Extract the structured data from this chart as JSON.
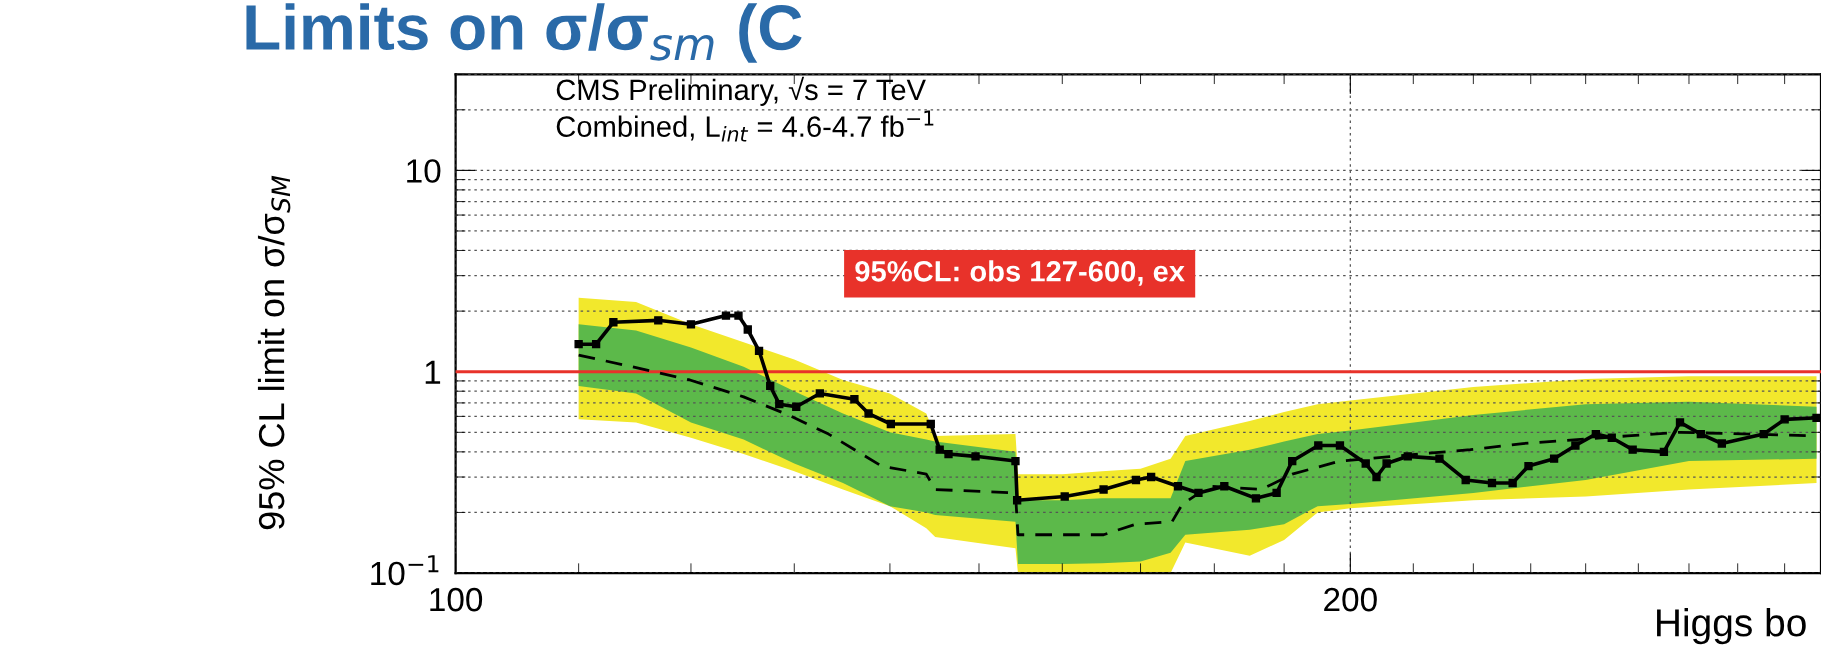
{
  "chart_data": {
    "type": "line",
    "title": "Limits on σ/σ$_{sm}$ (C",
    "xlabel": "Higgs bo",
    "ylabel": "95% CL limit on σ/σ$_{SM}$",
    "log": "xy",
    "xlim": [
      100,
      288
    ],
    "xticks": [
      100,
      200
    ],
    "ylim": [
      0.1,
      30
    ],
    "yticks": [
      {
        "value": 0.1,
        "label": "10$^{−1}$"
      },
      1,
      10
    ],
    "grid": true,
    "annotations": [
      "CMS Preliminary, √s = 7 TeV",
      "Combined, L$_{int}$ = 4.6-4.7 fb$^{−1}$",
      "95%CL: obs 127-600, ex"
    ],
    "ref_lines": [
      {
        "axis": "y",
        "value": 1,
        "color": "#e8322a"
      }
    ],
    "series": [
      {
        "type": "area",
        "color": "#f2e82c",
        "x": [
          110,
          115,
          120,
          125,
          130,
          135,
          140,
          144,
          145,
          154.3,
          154.6,
          160,
          165,
          170,
          174,
          176,
          185,
          190,
          195,
          200,
          220,
          240,
          260,
          287
        ],
        "values": [
          null,
          null,
          null,
          null,
          null,
          null,
          null,
          null,
          null,
          null,
          null,
          null,
          null,
          null,
          null,
          null,
          null,
          null,
          null,
          null,
          null,
          null,
          null,
          null
        ],
        "lower": [
          0.58,
          0.56,
          0.47,
          0.39,
          0.32,
          0.26,
          0.215,
          0.167,
          0.151,
          0.133,
          0.1,
          0.1,
          0.1,
          0.1,
          0.1,
          0.142,
          0.122,
          0.146,
          0.2,
          0.21,
          0.23,
          0.24,
          0.26,
          0.28
        ],
        "upper": [
          2.33,
          2.22,
          1.72,
          1.4,
          1.15,
          0.91,
          0.78,
          0.62,
          0.48,
          0.49,
          0.31,
          0.31,
          0.32,
          0.33,
          0.37,
          0.48,
          0.57,
          0.63,
          0.69,
          0.72,
          0.84,
          0.92,
          0.95,
          0.95
        ]
      },
      {
        "type": "area",
        "color": "#5cb94a",
        "x": [
          110,
          115,
          120,
          125,
          130,
          135,
          140,
          144,
          145,
          154.3,
          154.6,
          160,
          165,
          170,
          174,
          176,
          185,
          190,
          195,
          200,
          220,
          240,
          260,
          287
        ],
        "values": [
          null,
          null,
          null,
          null,
          null,
          null,
          null,
          null,
          null,
          null,
          null,
          null,
          null,
          null,
          null,
          null,
          null,
          null,
          null,
          null,
          null,
          null,
          null,
          null
        ],
        "lower": [
          0.85,
          0.78,
          0.56,
          0.46,
          0.35,
          0.28,
          0.215,
          0.2,
          0.194,
          0.18,
          0.111,
          0.111,
          0.112,
          0.114,
          0.126,
          0.155,
          0.164,
          0.175,
          0.215,
          0.22,
          0.25,
          0.29,
          0.36,
          0.37
        ],
        "upper": [
          1.72,
          1.6,
          1.32,
          1.06,
          0.8,
          0.62,
          0.5,
          0.46,
          0.45,
          0.4,
          0.23,
          0.23,
          0.235,
          0.235,
          0.235,
          0.36,
          0.41,
          0.45,
          0.49,
          0.51,
          0.61,
          0.69,
          0.71,
          0.67
        ]
      },
      {
        "type": "line",
        "color": "#000000",
        "line_style": "dashed",
        "marker": "none",
        "x": [
          110,
          114.6,
          119.9,
          125,
          129.4,
          133.5,
          139.1,
          144,
          145,
          154.3,
          154.6,
          160.3,
          165.2,
          169.4,
          174.2,
          175.6,
          179.3,
          186.7,
          191.2,
          198.4,
          210.8,
          219.5,
          228.6,
          247.9,
          258.2,
          287
        ],
        "values": [
          1.21,
          1.06,
          0.91,
          0.75,
          0.61,
          0.49,
          0.34,
          0.31,
          0.26,
          0.25,
          0.155,
          0.155,
          0.155,
          0.175,
          0.18,
          0.22,
          0.27,
          0.26,
          0.31,
          0.36,
          0.39,
          0.41,
          0.44,
          0.48,
          0.5,
          0.48
        ]
      },
      {
        "color": "#000000",
        "line_style": "solid",
        "marker": "square",
        "x": [
          110,
          111.5,
          113,
          117,
          120,
          123.3,
          124.5,
          125.4,
          126.5,
          127.6,
          128.5,
          130.2,
          132.6,
          136.2,
          137.7,
          140.1,
          144.5,
          145.5,
          146.5,
          149.6,
          154.3,
          154.5,
          160.3,
          165.2,
          169.4,
          171.4,
          175,
          177.8,
          181.4,
          185.9,
          188.9,
          191.2,
          195.1,
          198.4,
          202.4,
          204.1,
          205.7,
          209.1,
          214.3,
          218.7,
          223.2,
          226.8,
          229.6,
          234.2,
          238.1,
          241.9,
          244.9,
          248.9,
          255,
          258.2,
          262.4,
          266.7,
          275.5,
          280,
          287
        ],
        "values": [
          1.37,
          1.37,
          1.76,
          1.8,
          1.72,
          1.9,
          1.9,
          1.62,
          1.27,
          0.85,
          0.69,
          0.67,
          0.78,
          0.73,
          0.62,
          0.55,
          0.55,
          0.41,
          0.39,
          0.38,
          0.36,
          0.23,
          0.24,
          0.26,
          0.29,
          0.3,
          0.27,
          0.25,
          0.27,
          0.235,
          0.25,
          0.36,
          0.43,
          0.43,
          0.35,
          0.3,
          0.35,
          0.38,
          0.37,
          0.29,
          0.28,
          0.28,
          0.34,
          0.37,
          0.43,
          0.49,
          0.47,
          0.41,
          0.4,
          0.56,
          0.49,
          0.44,
          0.49,
          0.58,
          0.59
        ]
      }
    ]
  }
}
